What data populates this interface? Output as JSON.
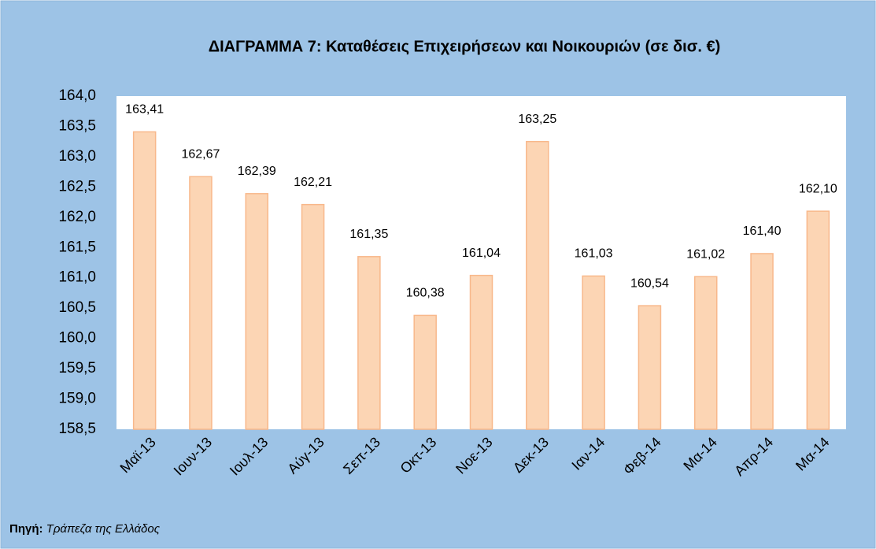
{
  "chart_data": {
    "type": "bar",
    "title": "ΔΙΑΓΡΑΜΜΑ 7: Καταθέσεις Επιχειρήσεων και Νοικουριών  (σε δισ. €)",
    "categories": [
      "Μαϊ-13",
      "Ιουν-13",
      "Ιουλ-13",
      "Αύγ-13",
      "Σεπ-13",
      "Οκτ-13",
      "Νοε-13",
      "Δεκ-13",
      "Ιαν-14",
      "Φεβ-14",
      "Μα-14",
      "Απρ-14",
      "Μα-14"
    ],
    "values": [
      163.41,
      162.67,
      162.39,
      162.21,
      161.35,
      160.38,
      161.04,
      163.25,
      161.03,
      160.54,
      161.02,
      161.4,
      162.1
    ],
    "value_labels": [
      "163,41",
      "162,67",
      "162,39",
      "162,21",
      "161,35",
      "160,38",
      "161,04",
      "163,25",
      "161,03",
      "160,54",
      "161,02",
      "161,40",
      "162,10"
    ],
    "color": "#fcd5b4",
    "edge_color": "#f8b88b",
    "ylim": [
      158.5,
      164.0
    ],
    "yticks": [
      {
        "value": 158.5,
        "label": "158,5"
      },
      {
        "value": 159,
        "label": "159,0"
      },
      {
        "value": 159.5,
        "label": "159,5"
      },
      {
        "value": 160,
        "label": "160,0"
      },
      {
        "value": 160.5,
        "label": "160,5"
      },
      {
        "value": 161,
        "label": "161,0"
      },
      {
        "value": 161.5,
        "label": "161,5"
      },
      {
        "value": 162,
        "label": "162,0"
      },
      {
        "value": 162.5,
        "label": "162,5"
      },
      {
        "value": 163,
        "label": "163,0"
      },
      {
        "value": 163.5,
        "label": "163,5"
      },
      {
        "value": 164,
        "label": "164,0"
      }
    ],
    "grid": false,
    "source_label": "Πηγή:",
    "source": "Τράπεζα της Ελλάδος"
  }
}
